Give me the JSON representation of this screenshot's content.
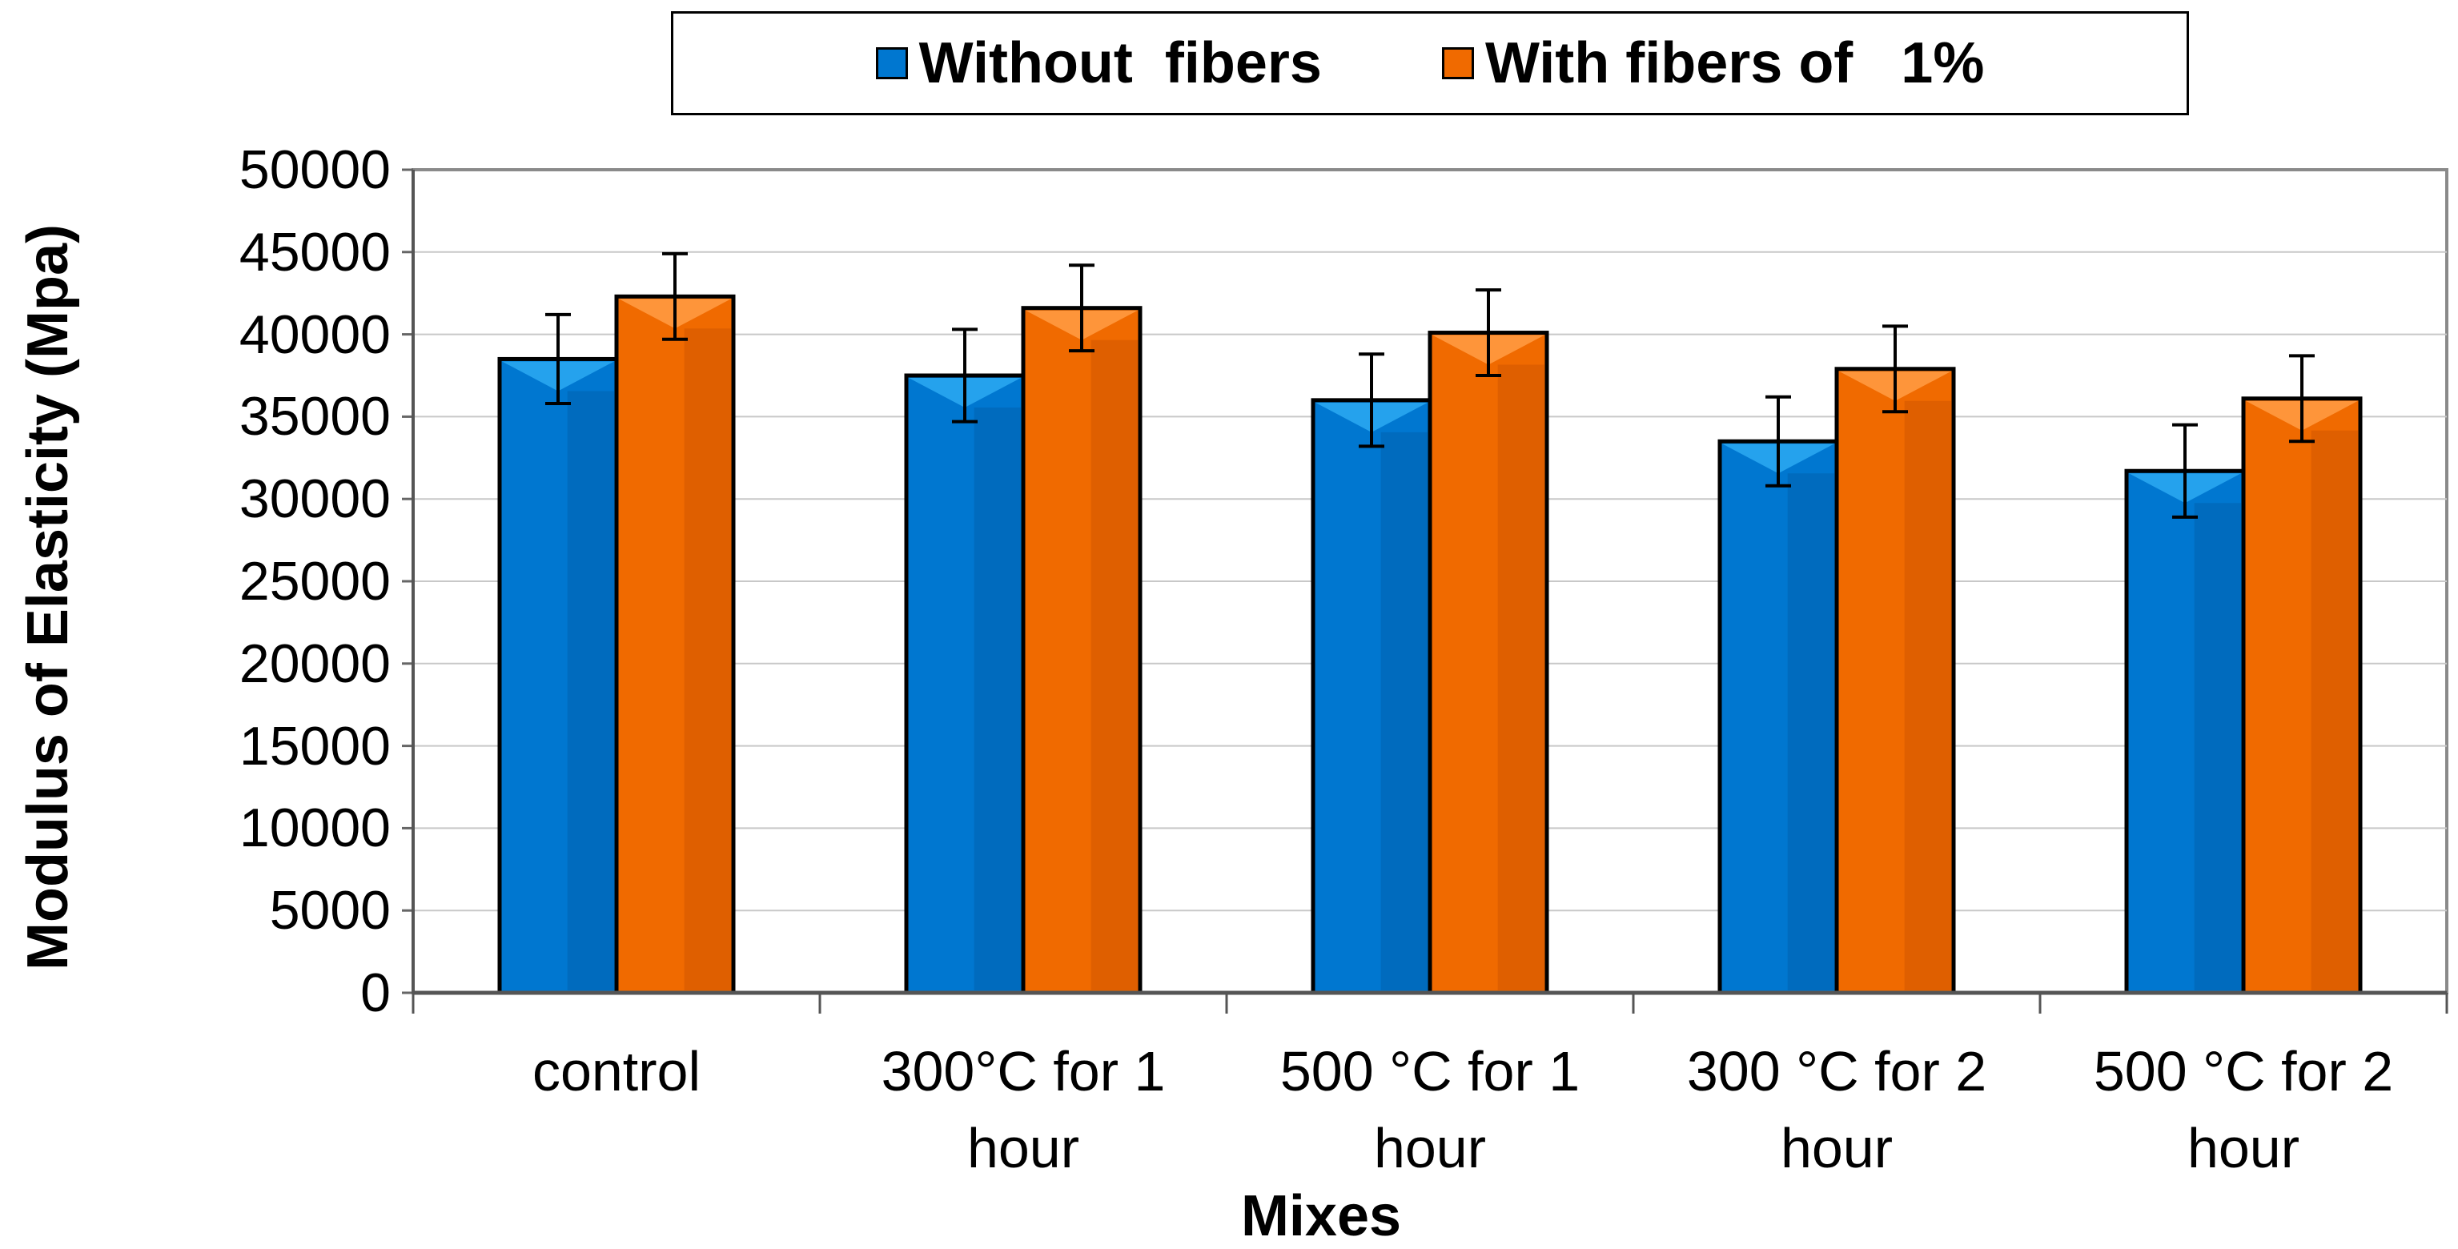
{
  "chart_data": {
    "type": "bar",
    "title": "",
    "xlabel": "Mixes",
    "ylabel": "Modulus of Elasticity (Mpa)",
    "ylim": [
      0,
      50000
    ],
    "ytick_step": 5000,
    "yticks": [
      "0",
      "5000",
      "10000",
      "15000",
      "20000",
      "25000",
      "30000",
      "35000",
      "40000",
      "45000",
      "50000"
    ],
    "grid": true,
    "legend_position": "top-center",
    "categories": [
      "control",
      "300°C   for 1 hour",
      "500 °C   for 1 hour",
      "300 °C for 2 hour",
      "500 °C   for 2 hour"
    ],
    "category_lines": [
      [
        "control",
        ""
      ],
      [
        "300°C   for 1",
        "hour"
      ],
      [
        "500 °C   for 1",
        "hour"
      ],
      [
        "300 °C for 2",
        "hour"
      ],
      [
        "500 °C   for 2",
        "hour"
      ]
    ],
    "series": [
      {
        "name": "Without  fibers",
        "color": "#0077D0",
        "values": [
          38500,
          37500,
          36000,
          33500,
          31700
        ],
        "error": [
          2700,
          2800,
          2800,
          2700,
          2800
        ]
      },
      {
        "name": "With fibers of   1%",
        "color": "#F06A00",
        "values": [
          42300,
          41600,
          40100,
          37900,
          36100
        ],
        "error": [
          2600,
          2600,
          2600,
          2600,
          2600
        ]
      }
    ]
  }
}
